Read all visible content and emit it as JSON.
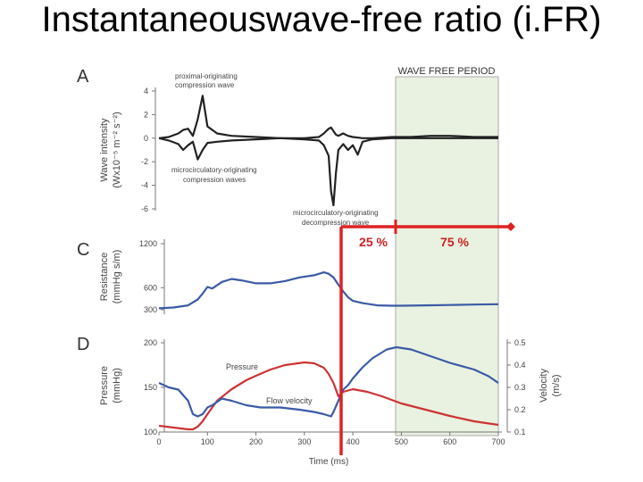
{
  "slide": {
    "title": "Instantaneouswave-free ratio (i.FR)"
  },
  "colors": {
    "wave": "#222222",
    "pressure": "#cc3333",
    "blue": "#3b5aa6",
    "wfp_fill": "#e9f1e0",
    "marker": "#dd2222",
    "axis": "#777777"
  },
  "panels": {
    "a": {
      "letter": "A",
      "ylabel_line1": "Wave intensity",
      "ylabel_line2": "(Wx10⁻⁵ m⁻² s⁻²)",
      "wfp_label": "WAVE FREE PERIOD",
      "annot_proximal_1": "proximal-originating",
      "annot_proximal_2": "compression wave",
      "annot_micro_1": "microcirculatory-originating",
      "annot_micro_2": "compression waves",
      "annot_decomp_1": "microcirculatory-originating",
      "annot_decomp_2": "decompression wave"
    },
    "c": {
      "letter": "C",
      "ylabel_line1": "Resistance",
      "ylabel_line2": "(mmHg s/m)"
    },
    "d": {
      "letter": "D",
      "ylabel_left_line1": "Pressure",
      "ylabel_left_line2": "(mmHg)",
      "ylabel_right_line1": "Velocity",
      "ylabel_right_line2": "(m/s)",
      "pressure_label": "Pressure",
      "flow_label": "Flow velocity",
      "xlabel": "Time (ms)"
    }
  },
  "markers": {
    "left_pct": "25 %",
    "right_pct": "75 %"
  },
  "chart_data": [
    {
      "type": "line",
      "panel": "A",
      "title": "",
      "xlabel": "",
      "ylabel": "Wave intensity (Wx10⁻⁵ m⁻² s⁻²)",
      "xlim": [
        0,
        700
      ],
      "ylim": [
        -6,
        4
      ],
      "yticks": [
        4,
        2,
        0,
        -2,
        -4,
        -6
      ],
      "ytick_labels": [
        "4",
        "2",
        "0",
        "-2",
        "-4",
        "-6"
      ],
      "wave_free_period_ms": [
        480,
        700
      ],
      "series": [
        {
          "x": [
            0,
            20,
            40,
            50,
            60,
            70,
            80,
            90,
            100,
            120,
            150,
            200,
            250,
            300,
            330,
            340,
            350,
            355,
            360,
            365,
            370,
            380,
            390,
            400,
            420,
            440,
            480,
            520,
            560,
            600,
            650,
            700
          ],
          "y": [
            0,
            0.1,
            0.4,
            0.7,
            0.8,
            0.2,
            1.6,
            3.6,
            1.0,
            0.4,
            0.2,
            0.1,
            0,
            0,
            0.1,
            0.4,
            0.8,
            0.9,
            0.6,
            0.3,
            0.2,
            0.4,
            0.2,
            0.1,
            0,
            0,
            0.1,
            0.1,
            0.2,
            0.2,
            0.1,
            0.1
          ]
        },
        {
          "x": [
            0,
            20,
            40,
            50,
            60,
            70,
            80,
            90,
            100,
            120,
            150,
            200,
            250,
            300,
            330,
            340,
            350,
            355,
            360,
            365,
            370,
            380,
            390,
            400,
            410,
            420,
            440,
            480,
            520,
            560,
            600,
            650,
            700
          ],
          "y": [
            0,
            -0.2,
            -0.5,
            -1.0,
            -0.6,
            -0.3,
            -1.8,
            -1.0,
            -0.4,
            -0.3,
            -0.2,
            -0.1,
            0,
            -0.1,
            -0.2,
            -0.6,
            -1.5,
            -4.5,
            -5.7,
            -3.0,
            -1.0,
            -0.5,
            -1.0,
            -0.6,
            -1.4,
            -0.3,
            -0.1,
            0,
            0,
            0,
            0,
            0,
            0
          ]
        }
      ]
    },
    {
      "type": "line",
      "panel": "C",
      "title": "",
      "xlabel": "",
      "ylabel": "Resistance (mmHg s/m)",
      "xlim": [
        0,
        700
      ],
      "ylim": [
        300,
        1200
      ],
      "yticks": [
        1200,
        600,
        300
      ],
      "ytick_labels": [
        "1200",
        "600",
        "300"
      ],
      "series": [
        {
          "x": [
            0,
            30,
            60,
            80,
            90,
            100,
            110,
            130,
            150,
            170,
            200,
            230,
            260,
            290,
            320,
            340,
            350,
            360,
            370,
            380,
            390,
            400,
            420,
            450,
            480,
            500,
            550,
            600,
            650,
            700
          ],
          "y": [
            320,
            330,
            360,
            440,
            520,
            610,
            590,
            680,
            720,
            700,
            660,
            660,
            690,
            740,
            770,
            810,
            790,
            740,
            640,
            550,
            470,
            420,
            390,
            360,
            355,
            355,
            360,
            365,
            370,
            375
          ]
        }
      ]
    },
    {
      "type": "line",
      "panel": "D",
      "title": "",
      "xlabel": "Time (ms)",
      "ylabel": "Pressure (mmHg)",
      "ylabel_right": "Velocity (m/s)",
      "xlim": [
        0,
        700
      ],
      "xticks": [
        0,
        100,
        200,
        300,
        400,
        500,
        600,
        700
      ],
      "xtick_labels": [
        "0",
        "100",
        "200",
        "300",
        "400",
        "500",
        "600",
        "700"
      ],
      "ylim": [
        100,
        200
      ],
      "yticks": [
        200,
        150,
        100
      ],
      "ytick_labels": [
        "200",
        "150",
        "100"
      ],
      "ylim_right": [
        0.1,
        0.5
      ],
      "yticks_right": [
        0.5,
        0.4,
        0.3,
        0.2,
        0.1
      ],
      "ytick_labels_right": [
        "0.5",
        "0.4",
        "0.3",
        "0.2",
        "0.1"
      ],
      "series": [
        {
          "name": "Pressure",
          "axis": "left",
          "x": [
            0,
            30,
            60,
            70,
            80,
            90,
            100,
            120,
            150,
            180,
            200,
            230,
            260,
            300,
            320,
            340,
            350,
            360,
            370,
            380,
            400,
            430,
            460,
            500,
            550,
            600,
            650,
            700
          ],
          "y": [
            107,
            105,
            103,
            103,
            106,
            112,
            120,
            135,
            148,
            158,
            163,
            170,
            175,
            178,
            177,
            172,
            165,
            155,
            140,
            145,
            148,
            145,
            140,
            132,
            125,
            118,
            112,
            108
          ]
        },
        {
          "name": "Flow velocity",
          "axis": "right",
          "x": [
            0,
            20,
            40,
            60,
            70,
            80,
            90,
            100,
            110,
            130,
            150,
            180,
            210,
            250,
            290,
            320,
            340,
            355,
            360,
            370,
            380,
            390,
            400,
            420,
            440,
            470,
            490,
            520,
            560,
            600,
            650,
            680,
            700
          ],
          "y": [
            0.32,
            0.3,
            0.29,
            0.24,
            0.18,
            0.17,
            0.18,
            0.21,
            0.22,
            0.25,
            0.24,
            0.22,
            0.21,
            0.21,
            0.2,
            0.19,
            0.18,
            0.17,
            0.19,
            0.24,
            0.29,
            0.31,
            0.34,
            0.39,
            0.43,
            0.47,
            0.48,
            0.47,
            0.44,
            0.41,
            0.38,
            0.35,
            0.32
          ]
        }
      ]
    }
  ]
}
